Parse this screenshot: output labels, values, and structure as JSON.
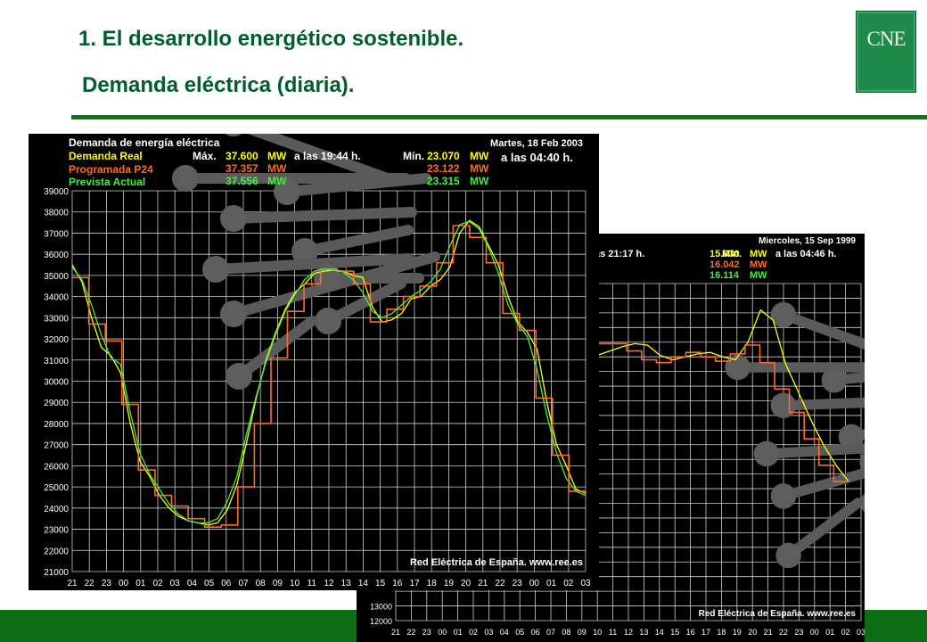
{
  "slide": {
    "title": "1. El desarrollo energético sostenible.",
    "subtitle": "Demanda eléctrica (diaria).",
    "logo_text": "CNE",
    "colors": {
      "green": "#005e2a",
      "rule": "#0c7a12",
      "footer": "#0b6e12"
    }
  },
  "chart_data": [
    {
      "type": "line",
      "title": "Demanda de energía eléctrica",
      "date": "Martes, 18 Feb 2003",
      "series": [
        {
          "name": "Demanda Real",
          "color": "#ffff00",
          "values": [
            35500,
            34700,
            33000,
            31600,
            31200,
            30400,
            28000,
            26200,
            25500,
            24600,
            24000,
            23600,
            23400,
            23300,
            23200,
            23300,
            23900,
            25100,
            27100,
            29200,
            31000,
            32300,
            33400,
            34200,
            34600,
            35100,
            35200,
            35250,
            35200,
            35000,
            34900,
            33500,
            32800,
            32900,
            33200,
            33900,
            34000,
            34500,
            34800,
            35400,
            37000,
            37600,
            37300,
            36400,
            35500,
            34000,
            32800,
            32300,
            31500,
            29000,
            27000,
            26000,
            24900,
            24700
          ]
        },
        {
          "name": "Programada P24",
          "color": "#ff6a2a",
          "values": [
            34900,
            32700,
            31900,
            28900,
            25800,
            24600,
            24100,
            23500,
            23100,
            23200,
            25000,
            28000,
            31100,
            33300,
            34600,
            35300,
            35200,
            34600,
            32800,
            33400,
            34000,
            34500,
            35600,
            37357,
            36800,
            35600,
            33200,
            32400,
            29200,
            26500,
            24800
          ]
        },
        {
          "name": "Prevista Actual",
          "color": "#44ee44",
          "values": [
            35400,
            34800,
            33600,
            32200,
            31100,
            30800,
            28500,
            26600,
            25600,
            24900,
            24200,
            23700,
            23400,
            23300,
            23300,
            23500,
            24300,
            25500,
            27500,
            29300,
            30900,
            32200,
            33300,
            34100,
            34800,
            35200,
            35300,
            35250,
            35150,
            34800,
            34200,
            33300,
            33000,
            33200,
            33600,
            34000,
            34300,
            34700,
            35300,
            36400,
            37400,
            37556,
            37200,
            36300,
            35100,
            33600,
            32700,
            32100,
            30500,
            28400,
            26600,
            25400,
            24800,
            24600
          ]
        }
      ],
      "stats": {
        "max_label": "Máx.",
        "max_value": "37.600",
        "max_unit": "MW",
        "max_time": "a las 19:44 h.",
        "min_label": "Mín.",
        "min_value": "23.070",
        "min_unit": "MW",
        "min_time": "a las 04:40 h.",
        "prog_max": "37.357",
        "prog_min": "23.122",
        "prev_max": "37.556",
        "prev_min": "23.315"
      },
      "xlabels": [
        "21",
        "22",
        "23",
        "00",
        "01",
        "02",
        "03",
        "04",
        "05",
        "06",
        "07",
        "08",
        "09",
        "10",
        "11",
        "12",
        "13",
        "14",
        "15",
        "16",
        "17",
        "18",
        "19",
        "20",
        "21",
        "22",
        "23",
        "00",
        "01",
        "02",
        "03"
      ],
      "yticks": [
        21000,
        22000,
        23000,
        24000,
        25000,
        26000,
        27000,
        28000,
        29000,
        30000,
        31000,
        32000,
        33000,
        34000,
        35000,
        36000,
        37000,
        38000,
        39000
      ],
      "ylim": [
        21000,
        39000
      ],
      "source": "Red Eléctrica de España.   www.ree.es"
    },
    {
      "type": "line",
      "date": "Miercoles, 15 Sep 1999",
      "stats": {
        "max_fragment": "las 21:17 h.",
        "min_label": "Mín.",
        "min_value": "15.830",
        "min_unit": "MW",
        "min_time": "a las 04:46 h.",
        "prog_min": "16.042",
        "prev_min": "16.114"
      },
      "series": [
        {
          "name": "Demanda Real",
          "color": "#ffff00",
          "values": [
            30100,
            30400,
            30700,
            30900,
            30800,
            30100,
            29800,
            30000,
            30200,
            30300,
            30000,
            29800,
            31000,
            33200,
            32500,
            29500,
            27600,
            25700,
            24000,
            22600,
            21500
          ]
        },
        {
          "name": "Programada P24",
          "color": "#ff6a2a",
          "values": [
            30900,
            30900,
            30400,
            29800,
            29600,
            30000,
            30300,
            30000,
            29700,
            30200,
            30800,
            29600,
            27800,
            26200,
            24400,
            22600,
            21500
          ]
        }
      ],
      "xlabels": [
        "21",
        "22",
        "23",
        "00",
        "01",
        "02",
        "03",
        "04",
        "05",
        "06",
        "07",
        "08",
        "09",
        "10",
        "11",
        "12",
        "13",
        "14",
        "15",
        "16",
        "17",
        "18",
        "19",
        "20",
        "21",
        "22",
        "23",
        "00",
        "01",
        "02",
        "03"
      ],
      "yticks": [
        12000,
        13000
      ],
      "source": "Red Eléctrica de España.   www.ree.es"
    }
  ]
}
